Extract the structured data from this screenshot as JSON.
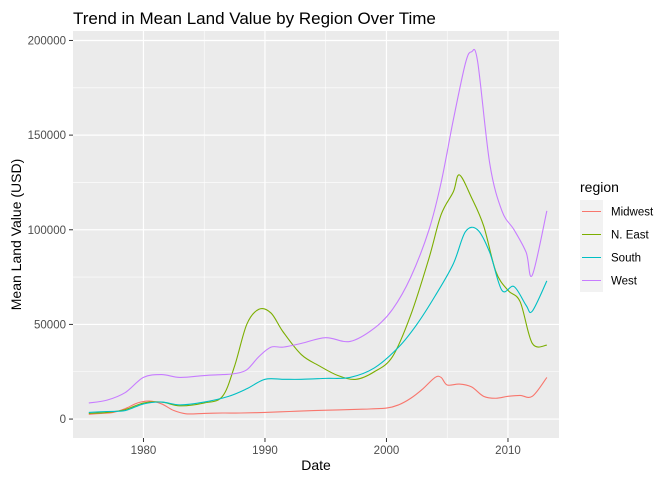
{
  "chart_data": {
    "type": "line",
    "title": "Trend in Mean Land Value by Region Over Time",
    "xlabel": "Date",
    "ylabel": "Mean Land Value (USD)",
    "xlim": [
      1974.2,
      2014.2
    ],
    "ylim": [
      -10000,
      205000
    ],
    "x_ticks": [
      1980,
      1990,
      2000,
      2010
    ],
    "y_ticks": [
      0,
      50000,
      100000,
      150000,
      200000
    ],
    "x_tick_labels": [
      "1980",
      "1990",
      "2000",
      "2010"
    ],
    "y_tick_labels": [
      "0",
      "50000",
      "100000",
      "150000",
      "200000"
    ],
    "grid": true,
    "legend": {
      "title": "region",
      "position": "right"
    },
    "series": [
      {
        "name": "Midwest",
        "color": "#F8766D",
        "x": [
          1975.5,
          1976.5,
          1977.5,
          1978.5,
          1979.5,
          1980.5,
          1981.5,
          1982.5,
          1983.5,
          1985.0,
          1986.5,
          1988.0,
          1990.0,
          1992.0,
          1994.0,
          1996.0,
          1998.0,
          2000.0,
          2001.0,
          2002.0,
          2003.0,
          2004.0,
          2004.5,
          2005.0,
          2006.0,
          2007.0,
          2008.0,
          2009.0,
          2010.0,
          2011.0,
          2012.0,
          2013.2
        ],
        "values": [
          2500,
          3000,
          3500,
          5500,
          8500,
          9500,
          8000,
          4500,
          2800,
          3000,
          3200,
          3200,
          3500,
          4000,
          4500,
          4800,
          5200,
          5800,
          7500,
          11000,
          16000,
          22000,
          22000,
          18000,
          18500,
          17000,
          12000,
          11000,
          12000,
          12500,
          12000,
          22000
        ]
      },
      {
        "name": "N. East",
        "color": "#7CAE00",
        "x": [
          1975.5,
          1977.0,
          1978.5,
          1980.0,
          1981.5,
          1983.0,
          1985.0,
          1986.5,
          1987.5,
          1988.5,
          1989.5,
          1990.5,
          1991.5,
          1993.0,
          1994.5,
          1996.0,
          1997.5,
          1999.0,
          2000.5,
          2002.0,
          2003.5,
          2004.5,
          2005.5,
          2006.0,
          2007.0,
          2008.0,
          2009.0,
          2010.0,
          2011.0,
          2012.0,
          2013.2
        ],
        "values": [
          3000,
          3500,
          5000,
          8500,
          9000,
          7000,
          8500,
          12000,
          28000,
          50000,
          58000,
          56000,
          46000,
          34000,
          28000,
          23000,
          21000,
          25000,
          33000,
          55000,
          85000,
          108000,
          120000,
          129000,
          117000,
          102000,
          78000,
          68000,
          62000,
          40000,
          39000
        ]
      },
      {
        "name": "South",
        "color": "#00BFC4",
        "x": [
          1975.5,
          1977.0,
          1978.5,
          1980.0,
          1981.5,
          1983.0,
          1985.0,
          1987.0,
          1988.5,
          1990.0,
          1991.5,
          1993.0,
          1995.0,
          1997.0,
          1999.0,
          2001.0,
          2002.5,
          2004.0,
          2005.5,
          2006.5,
          2007.5,
          2008.5,
          2009.5,
          2010.5,
          2011.5,
          2012.0,
          2013.2
        ],
        "values": [
          3500,
          4000,
          4500,
          8000,
          9000,
          7500,
          9000,
          12000,
          16000,
          21000,
          21000,
          21000,
          21500,
          22000,
          27000,
          38000,
          50000,
          65000,
          82000,
          99000,
          100000,
          88000,
          68000,
          70000,
          60000,
          57000,
          73000
        ]
      },
      {
        "name": "West",
        "color": "#C77CFF",
        "x": [
          1975.5,
          1977.0,
          1978.5,
          1980.0,
          1981.5,
          1983.0,
          1985.0,
          1986.5,
          1987.5,
          1988.5,
          1989.5,
          1990.5,
          1991.5,
          1993.0,
          1995.0,
          1997.0,
          1999.0,
          2000.5,
          2002.0,
          2003.5,
          2004.5,
          2005.5,
          2006.5,
          2007.0,
          2007.5,
          2008.5,
          2009.5,
          2010.5,
          2011.5,
          2012.0,
          2013.2
        ],
        "values": [
          8500,
          10000,
          14000,
          22000,
          23500,
          22000,
          23000,
          23500,
          24000,
          26000,
          33000,
          38000,
          38000,
          40000,
          43000,
          41000,
          48000,
          58000,
          75000,
          100000,
          125000,
          158000,
          188000,
          194000,
          189000,
          135000,
          110000,
          100000,
          88000,
          76000,
          110000
        ]
      }
    ]
  }
}
